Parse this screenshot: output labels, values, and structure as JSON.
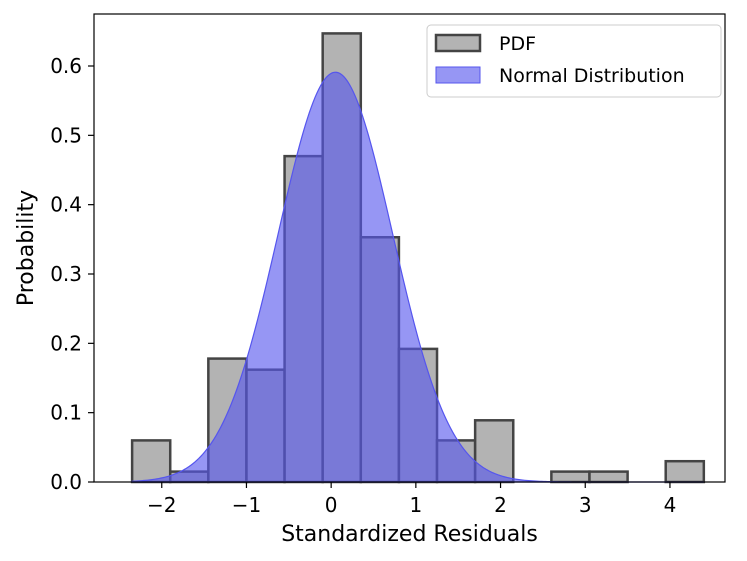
{
  "chart_data": {
    "type": "bar",
    "xlabel": "Standardized Residuals",
    "ylabel": "Probability",
    "xlim": [
      -2.8,
      4.65
    ],
    "ylim": [
      0,
      0.675
    ],
    "xticks": [
      -2,
      -1,
      0,
      1,
      2,
      3,
      4
    ],
    "xtick_labels": [
      "−2",
      "−1",
      "0",
      "1",
      "2",
      "3",
      "4"
    ],
    "yticks": [
      0.0,
      0.1,
      0.2,
      0.3,
      0.4,
      0.5,
      0.6
    ],
    "ytick_labels": [
      "0.0",
      "0.1",
      "0.2",
      "0.3",
      "0.4",
      "0.5",
      "0.6"
    ],
    "histogram": {
      "name": "PDF",
      "bin_edges": [
        -2.35,
        -1.9,
        -1.45,
        -1.0,
        -0.55,
        -0.1,
        0.35,
        0.8,
        1.25,
        1.7,
        2.15,
        2.6,
        3.05,
        3.5,
        3.95,
        4.4
      ],
      "values": [
        0.06,
        0.015,
        0.178,
        0.162,
        0.47,
        0.647,
        0.353,
        0.192,
        0.06,
        0.089,
        0.0,
        0.015,
        0.015,
        0.0,
        0.03
      ],
      "color": "#b3b3b3",
      "edge_color": "#444444"
    },
    "normal_curve": {
      "name": "Normal Distribution",
      "mean": 0.05,
      "std": 0.675,
      "color": "#5555ee"
    },
    "legend": {
      "position": "top-right",
      "entries": [
        "PDF",
        "Normal Distribution"
      ]
    },
    "grid": false
  }
}
